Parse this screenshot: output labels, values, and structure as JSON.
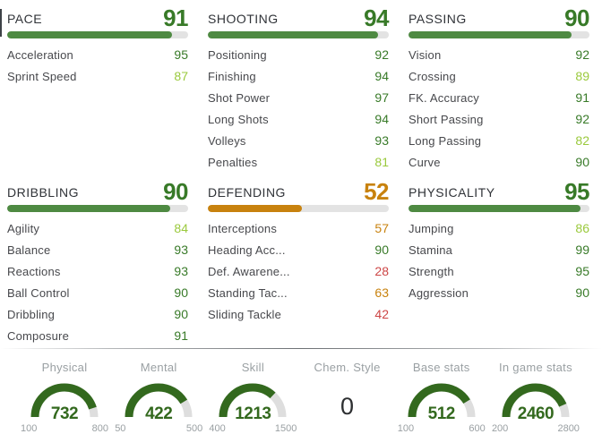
{
  "theme": {
    "value_high": "#387a28",
    "value_good": "#9ac93c",
    "value_mid": "#c8820e",
    "value_low": "#cd4646",
    "bar_green": "#4e8a42",
    "bar_orange": "#c8820e",
    "bar_track": "#e3e3e3",
    "gauge_green": "#33691e",
    "gauge_track": "#dedede",
    "title_text": "#303338",
    "label_text": "#47484c",
    "muted_text": "#9aa0a3"
  },
  "sections": [
    {
      "title": "PACE",
      "value": 91,
      "tier": "high",
      "stats": [
        {
          "label": "Acceleration",
          "value": 95,
          "tier": "high"
        },
        {
          "label": "Sprint Speed",
          "value": 87,
          "tier": "good"
        }
      ]
    },
    {
      "title": "SHOOTING",
      "value": 94,
      "tier": "high",
      "stats": [
        {
          "label": "Positioning",
          "value": 92,
          "tier": "high"
        },
        {
          "label": "Finishing",
          "value": 94,
          "tier": "high"
        },
        {
          "label": "Shot Power",
          "value": 97,
          "tier": "high"
        },
        {
          "label": "Long Shots",
          "value": 94,
          "tier": "high"
        },
        {
          "label": "Volleys",
          "value": 93,
          "tier": "high"
        },
        {
          "label": "Penalties",
          "value": 81,
          "tier": "good"
        }
      ]
    },
    {
      "title": "PASSING",
      "value": 90,
      "tier": "high",
      "stats": [
        {
          "label": "Vision",
          "value": 92,
          "tier": "high"
        },
        {
          "label": "Crossing",
          "value": 89,
          "tier": "good"
        },
        {
          "label": "FK. Accuracy",
          "value": 91,
          "tier": "high"
        },
        {
          "label": "Short Passing",
          "value": 92,
          "tier": "high"
        },
        {
          "label": "Long Passing",
          "value": 82,
          "tier": "good"
        },
        {
          "label": "Curve",
          "value": 90,
          "tier": "high"
        }
      ]
    },
    {
      "title": "DRIBBLING",
      "value": 90,
      "tier": "high",
      "stats": [
        {
          "label": "Agility",
          "value": 84,
          "tier": "good"
        },
        {
          "label": "Balance",
          "value": 93,
          "tier": "high"
        },
        {
          "label": "Reactions",
          "value": 93,
          "tier": "high"
        },
        {
          "label": "Ball Control",
          "value": 90,
          "tier": "high"
        },
        {
          "label": "Dribbling",
          "value": 90,
          "tier": "high"
        },
        {
          "label": "Composure",
          "value": 91,
          "tier": "high"
        }
      ]
    },
    {
      "title": "DEFENDING",
      "value": 52,
      "tier": "mid",
      "stats": [
        {
          "label": "Interceptions",
          "value": 57,
          "tier": "mid"
        },
        {
          "label": "Heading Acc...",
          "value": 90,
          "tier": "high"
        },
        {
          "label": "Def. Awarene...",
          "value": 28,
          "tier": "low"
        },
        {
          "label": "Standing Tac...",
          "value": 63,
          "tier": "mid"
        },
        {
          "label": "Sliding Tackle",
          "value": 42,
          "tier": "low"
        }
      ]
    },
    {
      "title": "PHYSICALITY",
      "value": 95,
      "tier": "high",
      "stats": [
        {
          "label": "Jumping",
          "value": 86,
          "tier": "good"
        },
        {
          "label": "Stamina",
          "value": 99,
          "tier": "high"
        },
        {
          "label": "Strength",
          "value": 95,
          "tier": "high"
        },
        {
          "label": "Aggression",
          "value": 90,
          "tier": "high"
        }
      ]
    }
  ],
  "summary": {
    "gauges": [
      {
        "label": "Physical",
        "value": 732,
        "min": 100,
        "max": 800,
        "type": "gauge"
      },
      {
        "label": "Mental",
        "value": 422,
        "min": 50,
        "max": 500,
        "type": "gauge"
      },
      {
        "label": "Skill",
        "value": 1213,
        "min": 400,
        "max": 1500,
        "type": "gauge"
      },
      {
        "label": "Chem. Style",
        "value": 0,
        "type": "number"
      },
      {
        "label": "Base stats",
        "value": 512,
        "min": 100,
        "max": 600,
        "type": "gauge"
      },
      {
        "label": "In game stats",
        "value": 2460,
        "min": 200,
        "max": 2800,
        "type": "gauge"
      }
    ]
  }
}
